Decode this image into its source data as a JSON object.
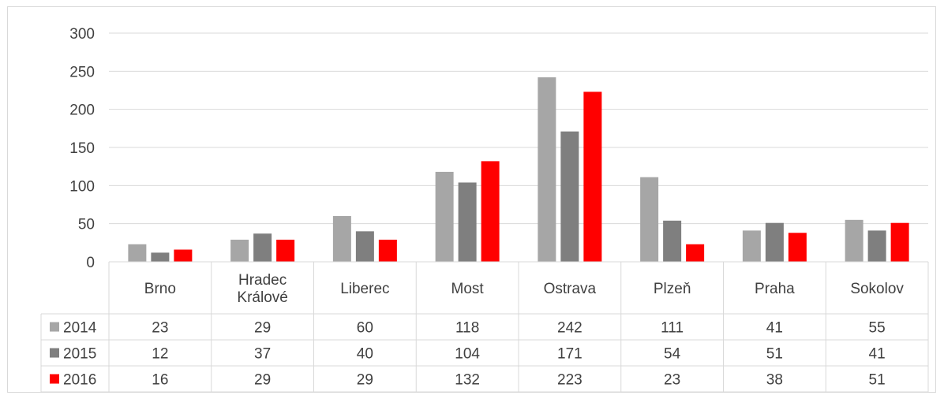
{
  "chart_data": {
    "type": "bar",
    "categories": [
      "Brno",
      "Hradec Králové",
      "Liberec",
      "Most",
      "Ostrava",
      "Plzeň",
      "Praha",
      "Sokolov"
    ],
    "category_lines": [
      [
        "Brno"
      ],
      [
        "Hradec",
        "Králové"
      ],
      [
        "Liberec"
      ],
      [
        "Most"
      ],
      [
        "Ostrava"
      ],
      [
        "Plzeň"
      ],
      [
        "Praha"
      ],
      [
        "Sokolov"
      ]
    ],
    "series": [
      {
        "name": "2014",
        "color": "#a6a6a6",
        "values": [
          23,
          29,
          60,
          118,
          242,
          111,
          41,
          55
        ]
      },
      {
        "name": "2015",
        "color": "#7f7f7f",
        "values": [
          12,
          37,
          40,
          104,
          171,
          54,
          51,
          41
        ]
      },
      {
        "name": "2016",
        "color": "#ff0000",
        "values": [
          16,
          29,
          29,
          132,
          223,
          23,
          38,
          51
        ]
      }
    ],
    "ylim": [
      0,
      300
    ],
    "yticks": [
      "0",
      "50",
      "100",
      "150",
      "200",
      "250",
      "300"
    ],
    "grid": true,
    "legend": "data-table"
  }
}
